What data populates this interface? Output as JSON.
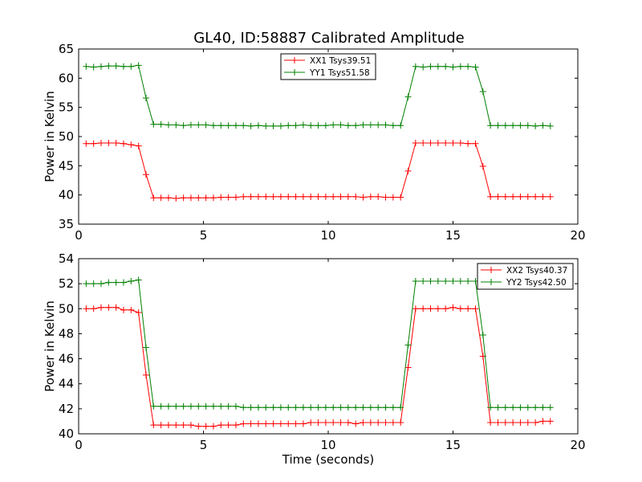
{
  "chart_data": [
    {
      "type": "line",
      "title": "GL40, ID:58887 Calibrated Amplitude",
      "xlabel": "",
      "ylabel": "Power in Kelvin",
      "xlim": [
        0,
        20
      ],
      "ylim": [
        35,
        65
      ],
      "xticks": [
        0,
        5,
        10,
        15,
        20
      ],
      "yticks": [
        35,
        40,
        45,
        50,
        55,
        60,
        65
      ],
      "grid": false,
      "legend_position": "top-center",
      "x": [
        0.3,
        0.6,
        0.9,
        1.2,
        1.5,
        1.8,
        2.1,
        2.4,
        2.7,
        3.0,
        3.3,
        3.6,
        3.9,
        4.2,
        4.5,
        4.8,
        5.1,
        5.4,
        5.7,
        6.0,
        6.3,
        6.6,
        6.9,
        7.2,
        7.5,
        7.8,
        8.1,
        8.4,
        8.7,
        9.0,
        9.3,
        9.6,
        9.9,
        10.2,
        10.5,
        10.8,
        11.1,
        11.4,
        11.7,
        12.0,
        12.3,
        12.6,
        12.9,
        13.2,
        13.5,
        13.8,
        14.1,
        14.4,
        14.7,
        15.0,
        15.3,
        15.6,
        15.9,
        16.2,
        16.5,
        16.8,
        17.1,
        17.4,
        17.7,
        18.0,
        18.3,
        18.6,
        18.9
      ],
      "series": [
        {
          "name": "XX1 Tsys39.51",
          "color": "#ff0000",
          "values": [
            48.8,
            48.8,
            48.9,
            48.9,
            48.9,
            48.8,
            48.6,
            48.4,
            43.5,
            39.5,
            39.5,
            39.5,
            39.4,
            39.5,
            39.5,
            39.5,
            39.5,
            39.5,
            39.6,
            39.6,
            39.6,
            39.7,
            39.7,
            39.7,
            39.7,
            39.7,
            39.7,
            39.7,
            39.7,
            39.7,
            39.7,
            39.7,
            39.7,
            39.7,
            39.7,
            39.7,
            39.7,
            39.6,
            39.7,
            39.7,
            39.6,
            39.6,
            39.6,
            44.1,
            48.9,
            48.9,
            48.9,
            48.9,
            48.9,
            48.9,
            48.9,
            48.8,
            48.8,
            44.9,
            39.7,
            39.7,
            39.7,
            39.7,
            39.7,
            39.7,
            39.7,
            39.7,
            39.7
          ]
        },
        {
          "name": "YY1 Tsys51.58",
          "color": "#008000",
          "values": [
            62.0,
            61.9,
            62.0,
            62.1,
            62.1,
            62.0,
            62.0,
            62.2,
            56.6,
            52.1,
            52.1,
            52.0,
            52.0,
            51.9,
            52.0,
            52.0,
            52.0,
            51.9,
            51.9,
            51.9,
            51.9,
            51.9,
            51.8,
            51.9,
            51.8,
            51.8,
            51.8,
            51.9,
            51.9,
            52.0,
            51.9,
            51.9,
            51.9,
            52.0,
            52.0,
            51.9,
            51.9,
            52.0,
            52.0,
            52.0,
            52.0,
            51.9,
            51.9,
            56.8,
            62.0,
            61.9,
            62.0,
            62.0,
            62.0,
            61.9,
            62.0,
            62.0,
            61.9,
            57.7,
            51.9,
            51.9,
            51.9,
            51.9,
            51.9,
            51.9,
            51.8,
            51.9,
            51.8
          ]
        }
      ]
    },
    {
      "type": "line",
      "title": "",
      "xlabel": "Time (seconds)",
      "ylabel": "Power in Kelvin",
      "xlim": [
        0,
        20
      ],
      "ylim": [
        40,
        54
      ],
      "xticks": [
        0,
        5,
        10,
        15,
        20
      ],
      "yticks": [
        40,
        42,
        44,
        46,
        48,
        50,
        52,
        54
      ],
      "grid": false,
      "legend_position": "top-right",
      "x": [
        0.3,
        0.6,
        0.9,
        1.2,
        1.5,
        1.8,
        2.1,
        2.4,
        2.7,
        3.0,
        3.3,
        3.6,
        3.9,
        4.2,
        4.5,
        4.8,
        5.1,
        5.4,
        5.7,
        6.0,
        6.3,
        6.6,
        6.9,
        7.2,
        7.5,
        7.8,
        8.1,
        8.4,
        8.7,
        9.0,
        9.3,
        9.6,
        9.9,
        10.2,
        10.5,
        10.8,
        11.1,
        11.4,
        11.7,
        12.0,
        12.3,
        12.6,
        12.9,
        13.2,
        13.5,
        13.8,
        14.1,
        14.4,
        14.7,
        15.0,
        15.3,
        15.6,
        15.9,
        16.2,
        16.5,
        16.8,
        17.1,
        17.4,
        17.7,
        18.0,
        18.3,
        18.6,
        18.9
      ],
      "series": [
        {
          "name": "XX2 Tsys40.37",
          "color": "#ff0000",
          "values": [
            50.0,
            50.0,
            50.1,
            50.1,
            50.1,
            49.9,
            49.9,
            49.7,
            44.7,
            40.7,
            40.7,
            40.7,
            40.7,
            40.7,
            40.7,
            40.6,
            40.6,
            40.6,
            40.7,
            40.7,
            40.7,
            40.8,
            40.8,
            40.8,
            40.8,
            40.8,
            40.8,
            40.8,
            40.8,
            40.8,
            40.9,
            40.9,
            40.9,
            40.9,
            40.9,
            40.9,
            40.8,
            40.9,
            40.9,
            40.9,
            40.9,
            40.9,
            40.9,
            45.3,
            50.0,
            50.0,
            50.0,
            50.0,
            50.0,
            50.1,
            50.0,
            50.0,
            50.0,
            46.2,
            40.9,
            40.9,
            40.9,
            40.9,
            40.9,
            40.9,
            40.9,
            41.0,
            41.0
          ]
        },
        {
          "name": "YY2 Tsys42.50",
          "color": "#008000",
          "values": [
            52.0,
            52.0,
            52.0,
            52.1,
            52.1,
            52.1,
            52.2,
            52.3,
            46.9,
            42.2,
            42.2,
            42.2,
            42.2,
            42.2,
            42.2,
            42.2,
            42.2,
            42.2,
            42.2,
            42.2,
            42.2,
            42.1,
            42.1,
            42.1,
            42.1,
            42.1,
            42.1,
            42.1,
            42.1,
            42.1,
            42.1,
            42.1,
            42.1,
            42.1,
            42.1,
            42.1,
            42.1,
            42.1,
            42.1,
            42.1,
            42.1,
            42.1,
            42.1,
            47.1,
            52.2,
            52.2,
            52.2,
            52.2,
            52.2,
            52.2,
            52.2,
            52.2,
            52.2,
            47.9,
            42.1,
            42.1,
            42.1,
            42.1,
            42.1,
            42.1,
            42.1,
            42.1,
            42.1
          ]
        }
      ]
    }
  ]
}
